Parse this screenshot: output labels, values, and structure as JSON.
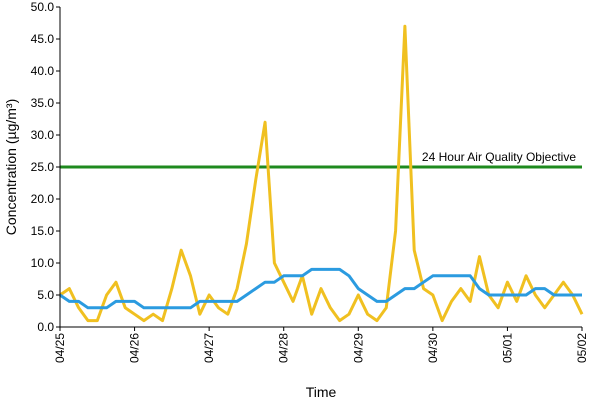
{
  "chart_data": {
    "type": "line",
    "y_label": "Concentration (µg/m³)",
    "x_label": "Time",
    "x": [
      0,
      0.125,
      0.25,
      0.375,
      0.5,
      0.625,
      0.75,
      0.875,
      1,
      1.125,
      1.25,
      1.375,
      1.5,
      1.625,
      1.75,
      1.875,
      2,
      2.125,
      2.25,
      2.375,
      2.5,
      2.625,
      2.75,
      2.875,
      3,
      3.125,
      3.25,
      3.375,
      3.5,
      3.625,
      3.75,
      3.875,
      4,
      4.125,
      4.25,
      4.375,
      4.5,
      4.625,
      4.75,
      4.875,
      5,
      5.125,
      5.25,
      5.375,
      5.5,
      5.625,
      5.75,
      5.875,
      6,
      6.125,
      6.25,
      6.375,
      6.5,
      6.625,
      6.75,
      6.875,
      7
    ],
    "series": [
      {
        "color": "#f0c020",
        "width": 3,
        "values": [
          5,
          6,
          3,
          1,
          1,
          5,
          7,
          3,
          2,
          1,
          2,
          1,
          6,
          12,
          8,
          2,
          5,
          3,
          2,
          6,
          13,
          23,
          32,
          10,
          7,
          4,
          8,
          2,
          6,
          3,
          1,
          2,
          5,
          2,
          1,
          3,
          15,
          47,
          12,
          6,
          5,
          1,
          4,
          6,
          4,
          11,
          5,
          3,
          7,
          4,
          8,
          5,
          3,
          5,
          7,
          5,
          2
        ]
      },
      {
        "color": "#2b9be0",
        "width": 3,
        "values": [
          5,
          4,
          4,
          3,
          3,
          3,
          4,
          4,
          4,
          3,
          3,
          3,
          3,
          3,
          3,
          4,
          4,
          4,
          4,
          4,
          5,
          6,
          7,
          7,
          8,
          8,
          8,
          9,
          9,
          9,
          9,
          8,
          6,
          5,
          4,
          4,
          5,
          6,
          6,
          7,
          8,
          8,
          8,
          8,
          8,
          6,
          5,
          5,
          5,
          5,
          5,
          6,
          6,
          5,
          5,
          5,
          5
        ]
      }
    ],
    "objective": {
      "label": "24 Hour Air Quality Objective",
      "value": 25,
      "color": "#1e8a1e"
    },
    "xlim": [
      0,
      7
    ],
    "xticks": [
      {
        "value": 0,
        "label": "04/25"
      },
      {
        "value": 1,
        "label": "04/26"
      },
      {
        "value": 2,
        "label": "04/27"
      },
      {
        "value": 3,
        "label": "04/28"
      },
      {
        "value": 4,
        "label": "04/29"
      },
      {
        "value": 5,
        "label": "04/30"
      },
      {
        "value": 6,
        "label": "05/01"
      },
      {
        "value": 7,
        "label": "05/02"
      }
    ],
    "ylim": [
      0,
      50
    ],
    "yticks": [
      {
        "value": 0,
        "label": "0.0"
      },
      {
        "value": 5,
        "label": "5.0"
      },
      {
        "value": 10,
        "label": "10.0"
      },
      {
        "value": 15,
        "label": "15.0"
      },
      {
        "value": 20,
        "label": "20.0"
      },
      {
        "value": 25,
        "label": "25.0"
      },
      {
        "value": 30,
        "label": "30.0"
      },
      {
        "value": 35,
        "label": "35.0"
      },
      {
        "value": 40,
        "label": "40.0"
      },
      {
        "value": 45,
        "label": "45.0"
      },
      {
        "value": 50,
        "label": "50.0"
      }
    ]
  }
}
